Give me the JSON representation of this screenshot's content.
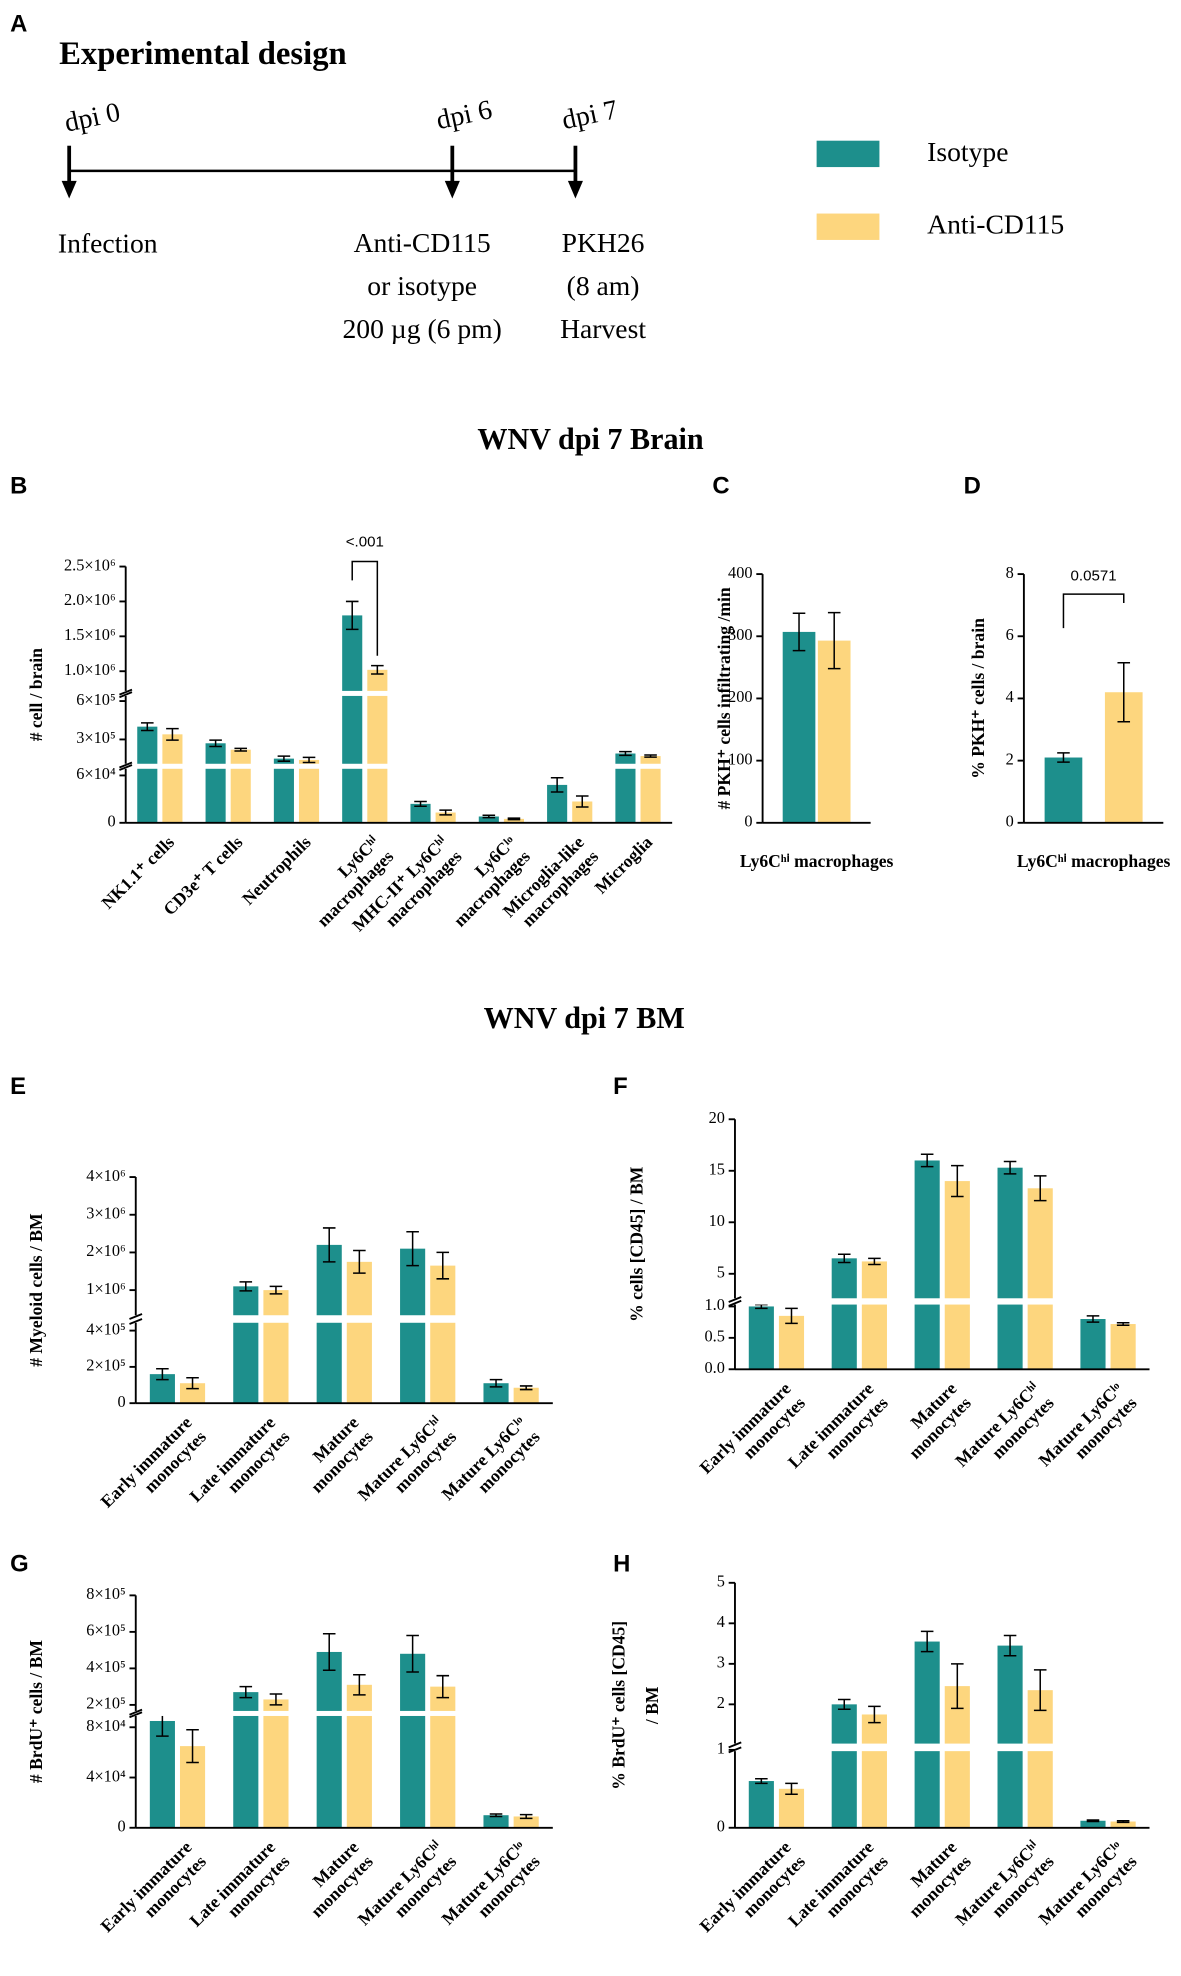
{
  "design": {
    "label": "A",
    "title": "Experimental design",
    "timepoints": [
      "dpi 0",
      "dpi 6",
      "dpi 7"
    ],
    "events": [
      "Infection",
      "Anti-CD115\nor isotype\n200 µg (6 pm)",
      "PKH26\n(8 am)\nHarvest"
    ]
  },
  "sections": [
    "WNV dpi 7 Brain",
    "WNV dpi 7 BM"
  ],
  "chart_data": [
    {
      "type": "bar",
      "label": "B",
      "ylabel": "# cell / brain",
      "categories": [
        "NK1.1⁺ cells",
        "CD3e⁺ T cells",
        "Neutrophils",
        "Ly6Cʰⁱ\nmacrophages",
        "MHC-II⁺ Ly6Cʰⁱ\nmacrophages",
        "Ly6Cˡᵒ\nmacrophages",
        "Microglia-like\nmacrophages",
        "Microglia"
      ],
      "series": [
        {
          "name": "Isotype",
          "color": "#1d8f8c",
          "values": [
            400000,
            270000,
            150000,
            1800000,
            24000,
            8000,
            48000,
            190000
          ],
          "errors": [
            30000,
            25000,
            20000,
            200000,
            3000,
            1500,
            9000,
            15000
          ]
        },
        {
          "name": "Anti-CD115",
          "color": "#fdd67e",
          "values": [
            340000,
            220000,
            140000,
            1020000,
            13000,
            5000,
            27000,
            170000
          ],
          "errors": [
            45000,
            10000,
            20000,
            60000,
            3000,
            1000,
            7000,
            8000
          ]
        }
      ],
      "ylim": [
        0,
        2500000
      ],
      "ylim_segments": [
        [
          0,
          70000
        ],
        [
          100000,
          650000
        ],
        [
          700000,
          2500000
        ]
      ],
      "yticks": [
        0,
        {
          "value": 60000,
          "label": "6×10⁴"
        },
        {
          "value": 300000,
          "label": "3×10⁵"
        },
        {
          "value": 600000,
          "label": "6×10⁵"
        },
        {
          "value": 1000000,
          "label": "1.0×10⁶"
        },
        {
          "value": 1500000,
          "label": "1.5×10⁶"
        },
        {
          "value": 2000000,
          "label": "2.0×10⁶"
        },
        {
          "value": 2500000,
          "label": "2.5×10⁶"
        }
      ],
      "annotation": "<.001"
    },
    {
      "type": "bar",
      "label": "C",
      "ylabel": "# PKH⁺ cells infiltrating /min",
      "categories": [
        "Ly6Cʰⁱ macrophages"
      ],
      "series": [
        {
          "name": "Isotype",
          "color": "#1d8f8c",
          "values": [
            307
          ],
          "errors": [
            30
          ]
        },
        {
          "name": "Anti-CD115",
          "color": "#fdd67e",
          "values": [
            293
          ],
          "errors": [
            45
          ]
        }
      ],
      "ylim": [
        0,
        400
      ],
      "yticks": [
        0,
        100,
        200,
        300,
        400
      ]
    },
    {
      "type": "bar",
      "label": "D",
      "ylabel": "% PKH⁺ cells / brain",
      "categories": [
        "Ly6Cʰⁱ macrophages"
      ],
      "series": [
        {
          "name": "Isotype",
          "color": "#1d8f8c",
          "values": [
            2.1
          ],
          "errors": [
            0.15
          ]
        },
        {
          "name": "Anti-CD115",
          "color": "#fdd67e",
          "values": [
            4.2
          ],
          "errors": [
            0.95
          ]
        }
      ],
      "ylim": [
        0,
        8
      ],
      "yticks": [
        0,
        2,
        4,
        6,
        8
      ],
      "annotation": "0.0571"
    },
    {
      "type": "bar",
      "label": "E",
      "ylabel": "# Myeloid cells / BM",
      "categories": [
        "Early immature\nmonocytes",
        "Late immature\nmonocytes",
        "Mature\nmonocytes",
        "Mature Ly6Cʰⁱ\nmonocytes",
        "Mature Ly6Cˡᵒ\nmonocytes"
      ],
      "series": [
        {
          "name": "Isotype",
          "color": "#1d8f8c",
          "values": [
            160000,
            1100000,
            2200000,
            2100000,
            110000
          ],
          "errors": [
            30000,
            120000,
            450000,
            450000,
            20000
          ]
        },
        {
          "name": "Anti-CD115",
          "color": "#fdd67e",
          "values": [
            110000,
            1000000,
            1750000,
            1650000,
            85000
          ],
          "errors": [
            30000,
            100000,
            300000,
            350000,
            10000
          ]
        }
      ],
      "ylim": [
        0,
        4000000
      ],
      "ylim_segments": [
        [
          0,
          450000
        ],
        [
          300000,
          4000000
        ]
      ],
      "yticks": [
        0,
        {
          "value": 200000,
          "label": "2×10⁵"
        },
        {
          "value": 400000,
          "label": "4×10⁵"
        },
        {
          "value": 1000000,
          "label": "1×10⁶"
        },
        {
          "value": 2000000,
          "label": "2×10⁶"
        },
        {
          "value": 3000000,
          "label": "3×10⁶"
        },
        {
          "value": 4000000,
          "label": "4×10⁶"
        }
      ]
    },
    {
      "type": "bar",
      "label": "F",
      "ylabel": "% cells [CD45] / BM",
      "categories": [
        "Early immature\nmonocytes",
        "Late immature\nmonocytes",
        "Mature\nmonocytes",
        "Mature Ly6Cʰⁱ\nmonocytes",
        "Mature Ly6Cˡᵒ\nmonocytes"
      ],
      "series": [
        {
          "name": "Isotype",
          "color": "#1d8f8c",
          "values": [
            1.0,
            6.5,
            16,
            15.3,
            0.8
          ],
          "errors": [
            0.03,
            0.4,
            0.6,
            0.6,
            0.05
          ]
        },
        {
          "name": "Anti-CD115",
          "color": "#fdd67e",
          "values": [
            0.85,
            6.2,
            14,
            13.3,
            0.72
          ],
          "errors": [
            0.12,
            0.3,
            1.5,
            1.2,
            0.02
          ]
        }
      ],
      "ylim": [
        0,
        20
      ],
      "ylim_segments": [
        [
          0,
          1.05
        ],
        [
          2.5,
          20
        ]
      ],
      "yticks": [
        {
          "value": 0,
          "label": "0.0"
        },
        {
          "value": 0.5,
          "label": "0.5"
        },
        {
          "value": 1,
          "label": "1.0"
        },
        5,
        10,
        15,
        20
      ]
    },
    {
      "type": "bar",
      "label": "G",
      "ylabel": "# BrdU⁺ cells / BM",
      "categories": [
        "Early immature\nmonocytes",
        "Late immature\nmonocytes",
        "Mature\nmonocytes",
        "Mature Ly6Cʰⁱ\nmonocytes",
        "Mature Ly6Cˡᵒ\nmonocytes"
      ],
      "series": [
        {
          "name": "Isotype",
          "color": "#1d8f8c",
          "values": [
            85000,
            270000,
            490000,
            480000,
            10000
          ],
          "errors": [
            12000,
            30000,
            100000,
            100000,
            1000
          ]
        },
        {
          "name": "Anti-CD115",
          "color": "#fdd67e",
          "values": [
            65000,
            230000,
            310000,
            300000,
            9000
          ],
          "errors": [
            13000,
            30000,
            55000,
            60000,
            1500
          ]
        }
      ],
      "ylim": [
        0,
        800000
      ],
      "ylim_segments": [
        [
          0,
          90000
        ],
        [
          160000,
          800000
        ]
      ],
      "yticks": [
        0,
        {
          "value": 40000,
          "label": "4×10⁴"
        },
        {
          "value": 80000,
          "label": "8×10⁴"
        },
        {
          "value": 200000,
          "label": "2×10⁵"
        },
        {
          "value": 400000,
          "label": "4×10⁵"
        },
        {
          "value": 600000,
          "label": "6×10⁵"
        },
        {
          "value": 800000,
          "label": "8×10⁵"
        }
      ]
    },
    {
      "type": "bar",
      "label": "H",
      "ylabel": "% BrdU⁺ cells [CD45]\n/ BM",
      "categories": [
        "Early immature\nmonocytes",
        "Late immature\nmonocytes",
        "Mature\nmonocytes",
        "Mature Ly6Cʰⁱ\nmonocytes",
        "Mature Ly6Cˡᵒ\nmonocytes"
      ],
      "series": [
        {
          "name": "Isotype",
          "color": "#1d8f8c",
          "values": [
            0.6,
            2.0,
            3.55,
            3.45,
            0.09
          ],
          "errors": [
            0.03,
            0.12,
            0.25,
            0.25,
            0.01
          ]
        },
        {
          "name": "Anti-CD115",
          "color": "#fdd67e",
          "values": [
            0.5,
            1.75,
            2.45,
            2.35,
            0.08
          ],
          "errors": [
            0.07,
            0.2,
            0.55,
            0.5,
            0.01
          ]
        }
      ],
      "ylim": [
        0,
        5
      ],
      "ylim_segments": [
        [
          0,
          1
        ],
        [
          1,
          5
        ]
      ],
      "yticks": [
        0,
        1,
        2,
        3,
        4,
        5
      ]
    }
  ]
}
